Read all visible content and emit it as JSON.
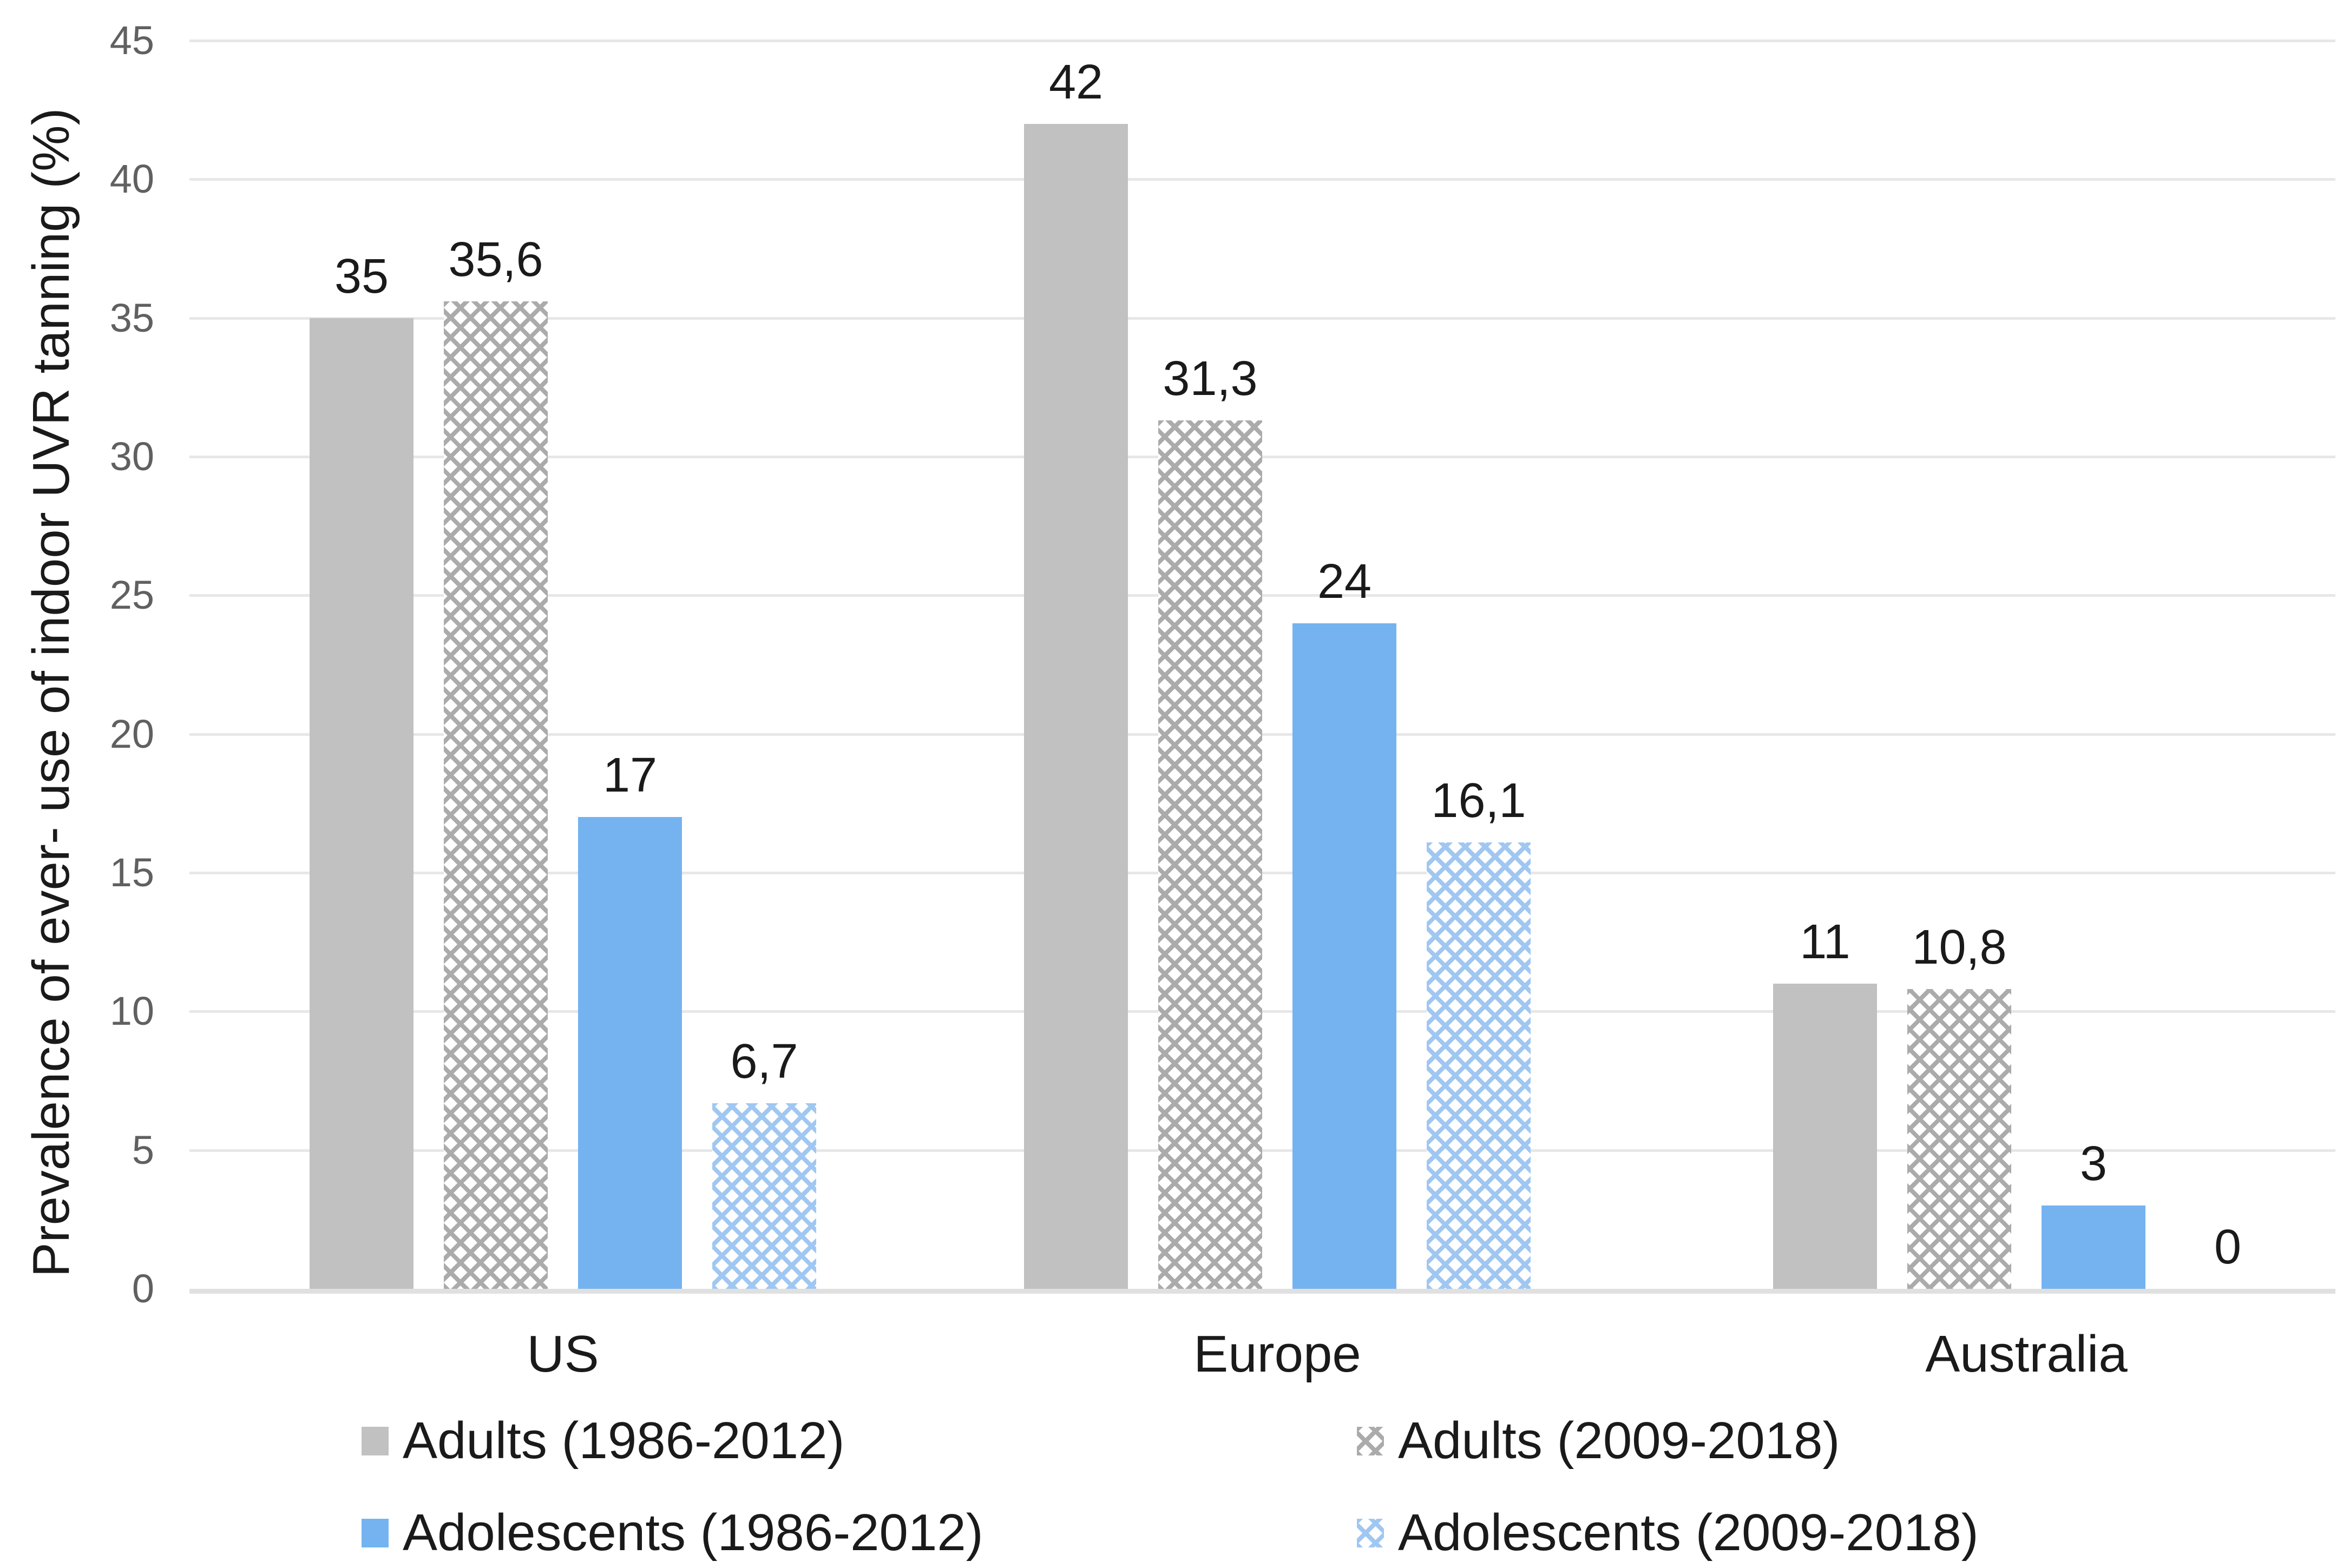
{
  "chart_data": {
    "type": "bar",
    "title": "",
    "ylabel": "Prevalence of ever- use of indoor UVR tanning (%)",
    "xlabel": "",
    "ylim": [
      0,
      45
    ],
    "ytick_step": 5,
    "ytick_labels": [
      "0",
      "5",
      "10",
      "15",
      "20",
      "25",
      "30",
      "35",
      "40",
      "45"
    ],
    "grid": true,
    "legend_position": "bottom",
    "categories": [
      "US",
      "Europe",
      "Australia"
    ],
    "series": [
      {
        "name": "Adults (1986-2012)",
        "style": "solid-gray",
        "values": [
          35,
          42,
          11
        ],
        "labels": [
          "35",
          "42",
          "11"
        ]
      },
      {
        "name": "Adults (2009-2018)",
        "style": "pattern-gray",
        "values": [
          35.6,
          31.3,
          10.8
        ],
        "labels": [
          "35,6",
          "31,3",
          "10,8"
        ]
      },
      {
        "name": "Adolescents (1986-2012)",
        "style": "solid-blue",
        "values": [
          17,
          24,
          3
        ],
        "labels": [
          "17",
          "24",
          "3"
        ]
      },
      {
        "name": "Adolescents (2009-2018)",
        "style": "pattern-blue",
        "values": [
          6.7,
          16.1,
          0
        ],
        "labels": [
          "6,7",
          "16,1",
          "0"
        ]
      }
    ]
  },
  "colors": {
    "solid_gray": "#c1c1c1",
    "solid_blue": "#74b3f0",
    "pattern_gray_line": "#ababab",
    "pattern_blue_line": "#a0c7f1",
    "gridline": "#e7e7e7",
    "axis_line": "#e0e0e0",
    "tick_text": "#606060",
    "text": "#1a1a1a"
  }
}
